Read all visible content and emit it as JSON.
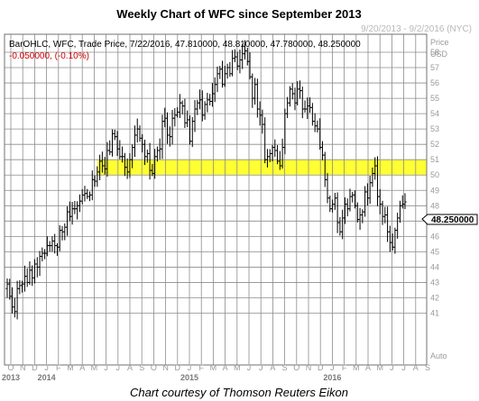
{
  "title": "Weekly Chart of WFC since September 2013",
  "date_range": "9/20/2013 - 9/2/2016 (NYC)",
  "header": {
    "line1": "BarOHLC, WFC, Trade Price, 7/22/2016, 47.810000, 48.810000, 47.780000, 48.250000",
    "line2": "-0.050000, (-0.10%)"
  },
  "axis_title_top": "Price",
  "axis_title_unit": "USD",
  "axis_bottom_label": "Auto",
  "last_price_label": "48.250000",
  "credit": "Chart courtesy of Thomson Reuters Eikon",
  "colors": {
    "bars": "#000000",
    "grid": "#8c8c8c",
    "band": "#ffff33",
    "change": "#cc0000"
  },
  "chart_data": {
    "type": "ohlc",
    "series_name": "WFC",
    "timeframe": "weekly",
    "ylabel": "Price",
    "yunit": "USD",
    "ylim": [
      40,
      59
    ],
    "y_ticks": [
      41,
      42,
      43,
      44,
      45,
      46,
      47,
      48,
      49,
      50,
      51,
      52,
      53,
      54,
      55,
      56,
      57,
      58
    ],
    "x_month_labels": [
      "O",
      "N",
      "D",
      "J",
      "F",
      "M",
      "A",
      "M",
      "J",
      "J",
      "A",
      "S",
      "O",
      "N",
      "D",
      "J",
      "F",
      "M",
      "A",
      "M",
      "J",
      "J",
      "A",
      "S",
      "O",
      "N",
      "D",
      "J",
      "F",
      "M",
      "A",
      "M",
      "J",
      "J",
      "A",
      "S"
    ],
    "x_year_labels": [
      {
        "label": "2013",
        "month_index": 0
      },
      {
        "label": "2014",
        "month_index": 3
      },
      {
        "label": "2015",
        "month_index": 15
      },
      {
        "label": "2016",
        "month_index": 27
      }
    ],
    "grid": true,
    "highlight_band": {
      "from": 50,
      "to": 51
    },
    "last_bar": {
      "date": "7/22/2016",
      "open": 47.81,
      "high": 48.81,
      "low": 47.78,
      "close": 48.25,
      "change": -0.05,
      "change_pct": -0.1
    },
    "closes": [
      42.9,
      42.1,
      41.4,
      41.1,
      42.6,
      42.8,
      42.9,
      43.4,
      43.0,
      43.8,
      43.3,
      44.2,
      44.0,
      44.7,
      44.9,
      44.9,
      45.4,
      45.4,
      45.7,
      45.4,
      45.3,
      46.4,
      46.3,
      46.6,
      47.6,
      47.3,
      47.8,
      47.8,
      48.0,
      48.3,
      48.7,
      48.8,
      48.6,
      48.7,
      49.7,
      49.6,
      50.2,
      50.9,
      50.6,
      50.4,
      51.6,
      51.5,
      52.7,
      52.5,
      51.7,
      51.2,
      51.2,
      50.5,
      50.2,
      51.0,
      51.8,
      52.6,
      53.0,
      52.4,
      52.0,
      51.2,
      51.4,
      50.3,
      50.1,
      51.2,
      51.6,
      51.7,
      53.5,
      53.7,
      52.6,
      52.5,
      53.7,
      53.9,
      54.1,
      54.7,
      54.5,
      53.4,
      53.6,
      52.2,
      53.5,
      54.3,
      54.7,
      54.9,
      53.9,
      54.6,
      54.9,
      54.8,
      55.3,
      55.9,
      56.6,
      56.9,
      55.9,
      56.6,
      57.0,
      56.6,
      57.6,
      57.7,
      57.1,
      57.5,
      57.9,
      58.1,
      57.4,
      56.4,
      55.0,
      55.9,
      54.3,
      53.9,
      53.3,
      51.0,
      51.2,
      51.4,
      51.8,
      51.6,
      50.9,
      50.6,
      51.8,
      54.0,
      54.7,
      55.6,
      55.3,
      54.7,
      55.6,
      55.5,
      54.3,
      54.3,
      54.5,
      54.4,
      53.5,
      53.2,
      53.0,
      51.8,
      51.3,
      49.7,
      48.5,
      47.8,
      48.1,
      48.5,
      46.9,
      46.3,
      47.2,
      48.1,
      47.8,
      48.6,
      48.7,
      48.0,
      47.1,
      47.4,
      47.6,
      48.9,
      48.5,
      49.5,
      50.1,
      50.6,
      48.6,
      48.1,
      47.3,
      47.4,
      46.3,
      45.6,
      45.3,
      46.4,
      47.2,
      48.0,
      48.1,
      48.25
    ]
  }
}
